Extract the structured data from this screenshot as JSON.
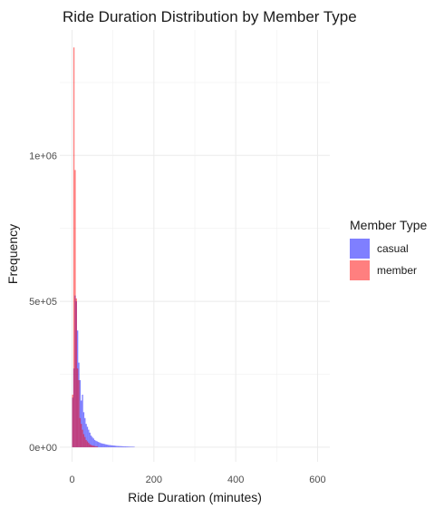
{
  "chart_data": {
    "type": "bar",
    "title": "Ride Duration Distribution by Member Type",
    "xlabel": "Ride Duration (minutes)",
    "ylabel": "Frequency",
    "xlim": [
      -30,
      630
    ],
    "ylim": [
      -50000,
      1430000
    ],
    "x_ticks": [
      0,
      200,
      400,
      600
    ],
    "x_tick_labels": [
      "0",
      "200",
      "400",
      "600"
    ],
    "y_ticks": [
      0,
      500000,
      1000000
    ],
    "y_tick_labels": [
      "0e+00",
      "5e+05",
      "1e+06"
    ],
    "bin_width": 3,
    "grid": true,
    "legend": {
      "title": "Member Type",
      "position": "right",
      "entries": [
        "casual",
        "member"
      ]
    },
    "series": [
      {
        "name": "casual",
        "color": "#0000ff",
        "opacity": 0.5,
        "bin_starts": [
          0,
          3,
          6,
          9,
          12,
          15,
          18,
          21,
          24,
          27,
          30,
          33,
          36,
          39,
          42,
          45,
          48,
          51,
          54,
          57,
          60,
          63,
          66,
          69,
          72,
          75,
          78,
          81,
          84,
          87,
          90,
          93,
          96,
          99,
          102,
          105,
          108,
          111,
          114,
          117,
          120,
          123,
          126,
          129,
          132,
          135,
          138,
          141,
          144,
          147,
          150
        ],
        "values": [
          170000,
          270000,
          520000,
          500000,
          400000,
          290000,
          230000,
          160000,
          180000,
          120000,
          100000,
          80000,
          70000,
          60000,
          50000,
          40000,
          35000,
          30000,
          25000,
          22000,
          20000,
          18000,
          16000,
          14000,
          13000,
          12000,
          11000,
          10000,
          9000,
          8000,
          7500,
          7000,
          6500,
          6000,
          5500,
          5000,
          4500,
          4200,
          4000,
          3800,
          3500,
          3200,
          3000,
          2800,
          2600,
          2400,
          2200,
          2000,
          1900,
          1800,
          1700
        ]
      },
      {
        "name": "member",
        "color": "#ff0000",
        "opacity": 0.5,
        "bin_starts": [
          0,
          3,
          6,
          9,
          12,
          15,
          18,
          21,
          24,
          27,
          30,
          33,
          36,
          39,
          42,
          45,
          48,
          51,
          54,
          57,
          60
        ],
        "values": [
          180000,
          1370000,
          950000,
          510000,
          270000,
          230000,
          100000,
          80000,
          60000,
          45000,
          35000,
          25000,
          20000,
          15000,
          10000,
          8000,
          6000,
          5000,
          4000,
          3000,
          2500
        ]
      }
    ]
  }
}
